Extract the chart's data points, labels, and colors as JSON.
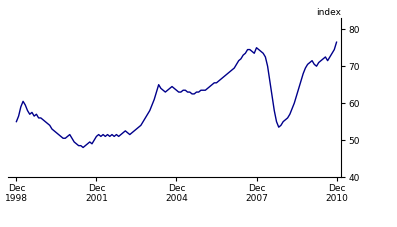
{
  "line_color": "#00008B",
  "line_width": 1.0,
  "background_color": "#ffffff",
  "ylabel": "index",
  "ylim": [
    40,
    83
  ],
  "yticks": [
    40,
    50,
    60,
    70,
    80
  ],
  "xlabel_ticks": [
    {
      "label": "Dec\n1998",
      "x": 1998.917
    },
    {
      "label": "Dec\n2001",
      "x": 2001.917
    },
    {
      "label": "Dec\n2004",
      "x": 2004.917
    },
    {
      "label": "Dec\n2007",
      "x": 2007.917
    },
    {
      "label": "Dec\n2010",
      "x": 2010.917
    }
  ],
  "xlim": [
    1998.6,
    2011.1
  ],
  "x": [
    1998.917,
    1999.0,
    1999.083,
    1999.167,
    1999.25,
    1999.333,
    1999.417,
    1999.5,
    1999.583,
    1999.667,
    1999.75,
    1999.833,
    1999.917,
    2000.0,
    2000.083,
    2000.167,
    2000.25,
    2000.333,
    2000.417,
    2000.5,
    2000.583,
    2000.667,
    2000.75,
    2000.833,
    2000.917,
    2001.0,
    2001.083,
    2001.167,
    2001.25,
    2001.333,
    2001.417,
    2001.5,
    2001.583,
    2001.667,
    2001.75,
    2001.833,
    2001.917,
    2002.0,
    2002.083,
    2002.167,
    2002.25,
    2002.333,
    2002.417,
    2002.5,
    2002.583,
    2002.667,
    2002.75,
    2002.833,
    2002.917,
    2003.0,
    2003.083,
    2003.167,
    2003.25,
    2003.333,
    2003.417,
    2003.5,
    2003.583,
    2003.667,
    2003.75,
    2003.833,
    2003.917,
    2004.0,
    2004.083,
    2004.167,
    2004.25,
    2004.333,
    2004.417,
    2004.5,
    2004.583,
    2004.667,
    2004.75,
    2004.833,
    2004.917,
    2005.0,
    2005.083,
    2005.167,
    2005.25,
    2005.333,
    2005.417,
    2005.5,
    2005.583,
    2005.667,
    2005.75,
    2005.833,
    2005.917,
    2006.0,
    2006.083,
    2006.167,
    2006.25,
    2006.333,
    2006.417,
    2006.5,
    2006.583,
    2006.667,
    2006.75,
    2006.833,
    2006.917,
    2007.0,
    2007.083,
    2007.167,
    2007.25,
    2007.333,
    2007.417,
    2007.5,
    2007.583,
    2007.667,
    2007.75,
    2007.833,
    2007.917,
    2008.0,
    2008.083,
    2008.167,
    2008.25,
    2008.333,
    2008.417,
    2008.5,
    2008.583,
    2008.667,
    2008.75,
    2008.833,
    2008.917,
    2009.0,
    2009.083,
    2009.167,
    2009.25,
    2009.333,
    2009.417,
    2009.5,
    2009.583,
    2009.667,
    2009.75,
    2009.833,
    2009.917,
    2010.0,
    2010.083,
    2010.167,
    2010.25,
    2010.333,
    2010.417,
    2010.5,
    2010.583,
    2010.667,
    2010.75,
    2010.833,
    2010.917
  ],
  "y": [
    55.0,
    56.5,
    59.0,
    60.5,
    59.5,
    58.0,
    57.0,
    57.5,
    56.5,
    57.0,
    56.0,
    56.0,
    55.5,
    55.0,
    54.5,
    54.0,
    53.0,
    52.5,
    52.0,
    51.5,
    51.0,
    50.5,
    50.5,
    51.0,
    51.5,
    50.5,
    49.5,
    49.0,
    48.5,
    48.5,
    48.0,
    48.5,
    49.0,
    49.5,
    49.0,
    50.0,
    51.0,
    51.5,
    51.0,
    51.5,
    51.0,
    51.5,
    51.0,
    51.5,
    51.0,
    51.5,
    51.0,
    51.5,
    52.0,
    52.5,
    52.0,
    51.5,
    52.0,
    52.5,
    53.0,
    53.5,
    54.0,
    55.0,
    56.0,
    57.0,
    58.0,
    59.5,
    61.0,
    63.0,
    65.0,
    64.0,
    63.5,
    63.0,
    63.5,
    64.0,
    64.5,
    64.0,
    63.5,
    63.0,
    63.0,
    63.5,
    63.5,
    63.0,
    63.0,
    62.5,
    62.5,
    63.0,
    63.0,
    63.5,
    63.5,
    63.5,
    64.0,
    64.5,
    65.0,
    65.5,
    65.5,
    66.0,
    66.5,
    67.0,
    67.5,
    68.0,
    68.5,
    69.0,
    69.5,
    70.5,
    71.5,
    72.0,
    73.0,
    73.5,
    74.5,
    74.5,
    74.0,
    73.5,
    75.0,
    74.5,
    74.0,
    73.5,
    72.5,
    70.0,
    66.0,
    62.0,
    58.0,
    55.0,
    53.5,
    54.0,
    55.0,
    55.5,
    56.0,
    57.0,
    58.5,
    60.0,
    62.0,
    64.0,
    66.0,
    68.0,
    69.5,
    70.5,
    71.0,
    71.5,
    70.5,
    70.0,
    71.0,
    71.5,
    72.0,
    72.5,
    71.5,
    72.5,
    73.5,
    74.5,
    76.5
  ]
}
